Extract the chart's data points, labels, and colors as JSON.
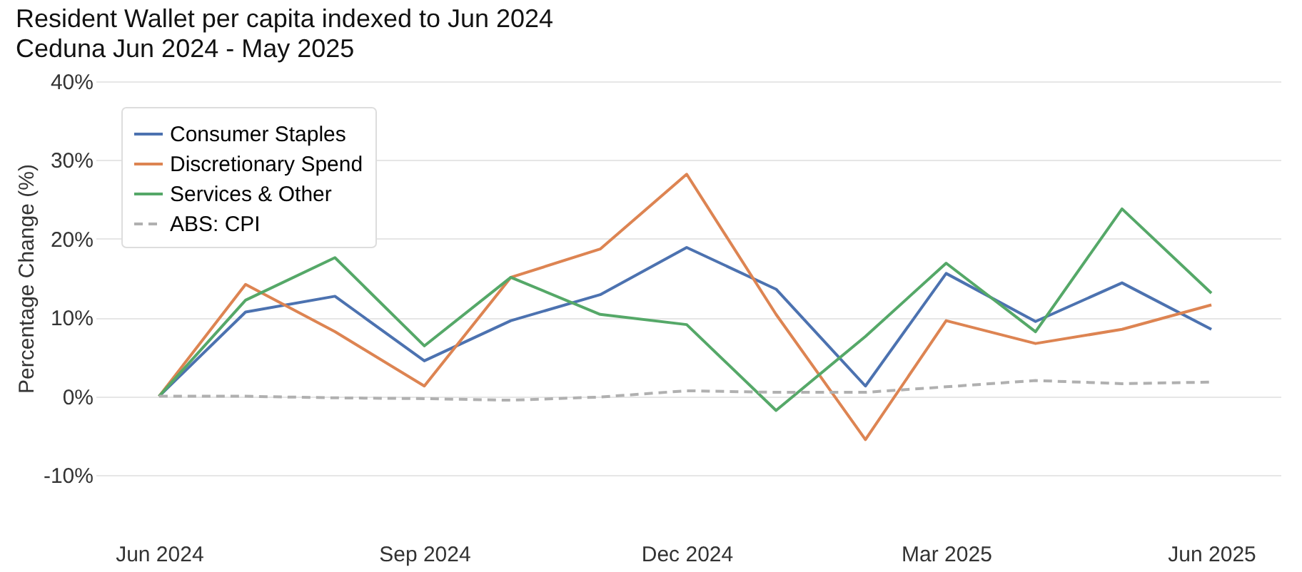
{
  "chart_data": {
    "type": "line",
    "title": "Resident Wallet per capita indexed to Jun 2024",
    "subtitle": "Ceduna Jun 2024 - May 2025",
    "ylabel": "Percentage Change (%)",
    "x": [
      "2024-06",
      "2024-07",
      "2024-08",
      "2024-09",
      "2024-10",
      "2024-11",
      "2024-12",
      "2025-01",
      "2025-02",
      "2025-03",
      "2025-04",
      "2025-05",
      "2025-06"
    ],
    "xlim": [
      "2024-05-10",
      "2025-06-25"
    ],
    "xticks": [
      {
        "value": "2024-06",
        "label": "Jun 2024"
      },
      {
        "value": "2024-09",
        "label": "Sep 2024"
      },
      {
        "value": "2024-12",
        "label": "Dec 2024"
      },
      {
        "value": "2025-03",
        "label": "Mar 2025"
      },
      {
        "value": "2025-06",
        "label": "Jun 2025"
      }
    ],
    "ylim": [
      -10,
      40
    ],
    "yticks": [
      {
        "value": -10,
        "label": "-10%"
      },
      {
        "value": 0,
        "label": "0%"
      },
      {
        "value": 10,
        "label": "10%"
      },
      {
        "value": 20,
        "label": "20%"
      },
      {
        "value": 30,
        "label": "30%"
      },
      {
        "value": 40,
        "label": "40%"
      }
    ],
    "grid": "y",
    "legend": "top left",
    "marker": "none",
    "series": [
      {
        "name": "Consumer Staples",
        "color": "#4c72b0",
        "line_style": "solid",
        "values": [
          0,
          10.7,
          12.7,
          4.5,
          9.6,
          12.9,
          18.9,
          13.6,
          1.3,
          15.6,
          9.5,
          14.4,
          8.5
        ]
      },
      {
        "name": "Discretionary Spend",
        "color": "#dd8452",
        "line_style": "solid",
        "values": [
          0,
          14.2,
          8.2,
          1.3,
          15.1,
          18.7,
          28.2,
          10.4,
          -5.5,
          9.6,
          6.7,
          8.5,
          11.6
        ]
      },
      {
        "name": "Services & Other",
        "color": "#55a868",
        "line_style": "solid",
        "values": [
          0,
          12.2,
          17.6,
          6.4,
          15.1,
          10.4,
          9.1,
          -1.8,
          7.6,
          16.9,
          8.2,
          23.8,
          13.1
        ]
      },
      {
        "name": "ABS: CPI",
        "color": "#b0b0b0",
        "line_style": "dashed",
        "values": [
          0,
          0,
          -0.2,
          -0.3,
          -0.5,
          -0.1,
          0.7,
          0.5,
          0.5,
          1.2,
          2.0,
          1.6,
          1.8
        ]
      }
    ]
  }
}
